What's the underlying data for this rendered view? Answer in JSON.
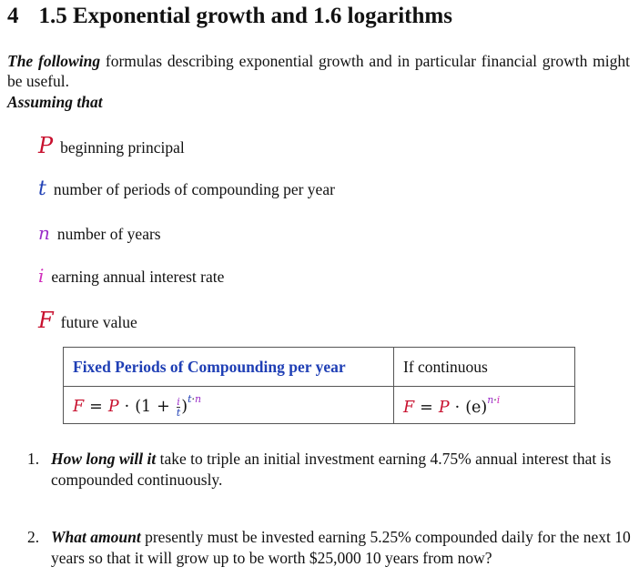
{
  "heading": {
    "number": "4",
    "text": "1.5 Exponential growth and 1.6 logarithms"
  },
  "intro": {
    "lead": "The following",
    "rest": " formulas describing exponential growth and in particular financial growth might be useful."
  },
  "assume_label": "Assuming that",
  "variables": [
    {
      "symbol": "P",
      "label": "beginning principal"
    },
    {
      "symbol": "t",
      "label": "number of periods of compounding per year"
    },
    {
      "symbol": "n",
      "label": "number of years"
    },
    {
      "symbol": "i",
      "label": "earning annual interest rate"
    },
    {
      "symbol": "F",
      "label": "future value"
    }
  ],
  "table": {
    "header_fixed": "Fixed Periods of Compounding per year",
    "header_continuous": "If continuous"
  },
  "questions": [
    {
      "num": "1.",
      "lead": "How long will it",
      "rest": " take to triple an initial investment earning 4.75% annual interest that is compounded continuously."
    },
    {
      "num": "2.",
      "lead": "What amount",
      "rest": " presently must be invested earning 5.25% compounded daily for the next 10 years so that it will grow up to be worth $25,000 10 years from now?"
    }
  ],
  "colors": {
    "red": "#c8102e",
    "blue": "#1f3fb5",
    "purple": "#9b30c9",
    "magenta": "#d02dbb"
  }
}
